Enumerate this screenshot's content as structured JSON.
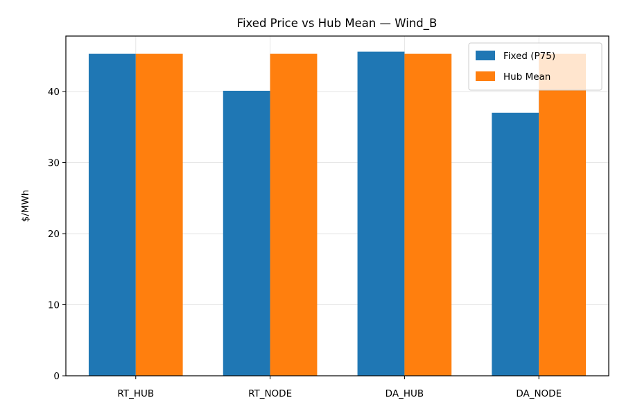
{
  "chart_data": {
    "type": "bar",
    "title": "Fixed Price vs Hub Mean — Wind_B",
    "xlabel": "",
    "ylabel": "$/MWh",
    "categories": [
      "RT_HUB",
      "RT_NODE",
      "DA_HUB",
      "DA_NODE"
    ],
    "series": [
      {
        "name": "Fixed (P75)",
        "color": "#1f77b4",
        "values": [
          45.3,
          40.1,
          45.6,
          37.0
        ]
      },
      {
        "name": "Hub Mean",
        "color": "#ff7f0e",
        "values": [
          45.3,
          45.3,
          45.3,
          45.3
        ]
      }
    ],
    "ylim": [
      0,
      47.8
    ],
    "yticks": [
      0,
      10,
      20,
      30,
      40
    ],
    "grid": true,
    "legend_position": "top-right"
  }
}
